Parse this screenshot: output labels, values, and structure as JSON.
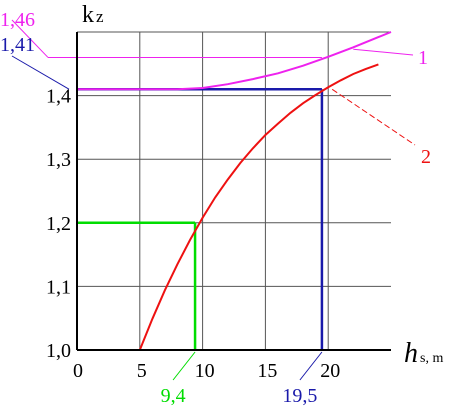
{
  "chart_data": {
    "type": "line",
    "y_axis_label": "k",
    "y_axis_label_sub": "z",
    "x_axis_label": "h",
    "x_axis_label_sub": "s, m",
    "xlim": [
      0,
      25
    ],
    "ylim": [
      1.0,
      1.5
    ],
    "grid": true,
    "x_ticks": [
      {
        "v": 0,
        "label": "0"
      },
      {
        "v": 5,
        "label": "5"
      },
      {
        "v": 10,
        "label": "10"
      },
      {
        "v": 15,
        "label": "15"
      },
      {
        "v": 20,
        "label": "20"
      }
    ],
    "y_ticks": [
      {
        "v": 1.0,
        "label": "1,0"
      },
      {
        "v": 1.1,
        "label": "1,1"
      },
      {
        "v": 1.2,
        "label": "1,2"
      },
      {
        "v": 1.3,
        "label": "1,3"
      },
      {
        "v": 1.4,
        "label": "1,4"
      }
    ],
    "series": [
      {
        "name": "1",
        "color": "#ee22ee",
        "x": [
          0,
          2,
          4,
          6,
          8,
          10,
          12,
          14,
          16,
          18,
          20,
          22,
          24,
          25
        ],
        "y": [
          1.41,
          1.41,
          1.41,
          1.41,
          1.41,
          1.412,
          1.418,
          1.426,
          1.435,
          1.447,
          1.461,
          1.476,
          1.492,
          1.5
        ]
      },
      {
        "name": "2",
        "color": "#ee1111",
        "x": [
          5,
          6,
          7,
          8,
          9,
          10,
          11,
          12,
          13,
          14,
          15,
          16,
          17,
          18,
          19,
          20,
          21,
          22,
          23,
          24
        ],
        "y": [
          1.0,
          1.049,
          1.094,
          1.135,
          1.173,
          1.208,
          1.24,
          1.268,
          1.294,
          1.317,
          1.338,
          1.356,
          1.373,
          1.388,
          1.401,
          1.413,
          1.424,
          1.434,
          1.442,
          1.449
        ]
      }
    ],
    "reference_lines": [
      {
        "x": 9.4,
        "y": 1.2,
        "color": "#00dd00",
        "x_label": "9,4",
        "y_label": ""
      },
      {
        "x": 19.5,
        "y": 1.41,
        "color": "#1a1aaa",
        "x_label": "19,5",
        "y_label": "1,41"
      },
      {
        "x": 19.5,
        "y": 1.46,
        "color": "#ee22ee",
        "x_label": "",
        "y_label": "1,46",
        "thin": true
      }
    ]
  }
}
